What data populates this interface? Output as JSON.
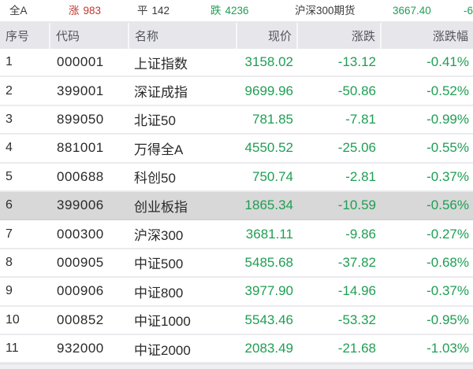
{
  "top_bar": {
    "market_label": "全A",
    "up_label": "涨",
    "up_count": "983",
    "flat_label": "平",
    "flat_count": "142",
    "down_label": "跌",
    "down_count": "4236",
    "futures_label": "沪深300期货",
    "futures_price": "3667.40",
    "futures_change_partial": "-6"
  },
  "table": {
    "headers": [
      "序号",
      "代码",
      "名称",
      "现价",
      "涨跌",
      "涨跌幅"
    ],
    "rows": [
      {
        "no": "1",
        "code": "000001",
        "name": "上证指数",
        "price": "3158.02",
        "change": "-13.12",
        "pct": "-0.41%"
      },
      {
        "no": "2",
        "code": "399001",
        "name": "深证成指",
        "price": "9699.96",
        "change": "-50.86",
        "pct": "-0.52%"
      },
      {
        "no": "3",
        "code": "899050",
        "name": "北证50",
        "price": "781.85",
        "change": "-7.81",
        "pct": "-0.99%"
      },
      {
        "no": "4",
        "code": "881001",
        "name": "万得全A",
        "price": "4550.52",
        "change": "-25.06",
        "pct": "-0.55%"
      },
      {
        "no": "5",
        "code": "000688",
        "name": "科创50",
        "price": "750.74",
        "change": "-2.81",
        "pct": "-0.37%"
      },
      {
        "no": "6",
        "code": "399006",
        "name": "创业板指",
        "price": "1865.34",
        "change": "-10.59",
        "pct": "-0.56%"
      },
      {
        "no": "7",
        "code": "000300",
        "name": "沪深300",
        "price": "3681.11",
        "change": "-9.86",
        "pct": "-0.27%"
      },
      {
        "no": "8",
        "code": "000905",
        "name": "中证500",
        "price": "5485.68",
        "change": "-37.82",
        "pct": "-0.68%"
      },
      {
        "no": "9",
        "code": "000906",
        "name": "中证800",
        "price": "3977.90",
        "change": "-14.96",
        "pct": "-0.37%"
      },
      {
        "no": "10",
        "code": "000852",
        "name": "中证1000",
        "price": "5543.46",
        "change": "-53.32",
        "pct": "-0.95%"
      },
      {
        "no": "11",
        "code": "932000",
        "name": "中证2000",
        "price": "2083.49",
        "change": "-21.68",
        "pct": "-1.03%"
      }
    ],
    "highlighted_row_index": 5
  },
  "colors": {
    "up_red": "#c0392d",
    "down_green": "#1f9e53",
    "header_bg": "#e7e7eb",
    "highlight_row_bg": "#d8d8d8",
    "row_divider": "#ebebef"
  }
}
